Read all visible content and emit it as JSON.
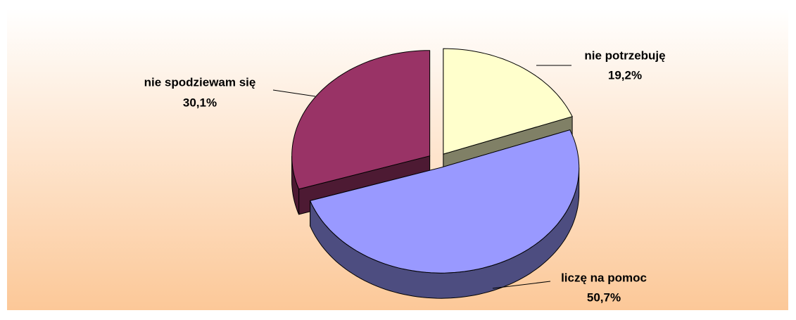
{
  "chart_data": {
    "type": "pie3d",
    "categories": [
      "nie potrzebuję",
      "liczę na pomoc",
      "nie spodziewam się"
    ],
    "values": [
      19.2,
      50.7,
      30.1
    ],
    "value_labels": [
      "19,2%",
      "50,7%",
      "30,1%"
    ],
    "colors": [
      "#ffffcc",
      "#9999ff",
      "#993366"
    ]
  }
}
